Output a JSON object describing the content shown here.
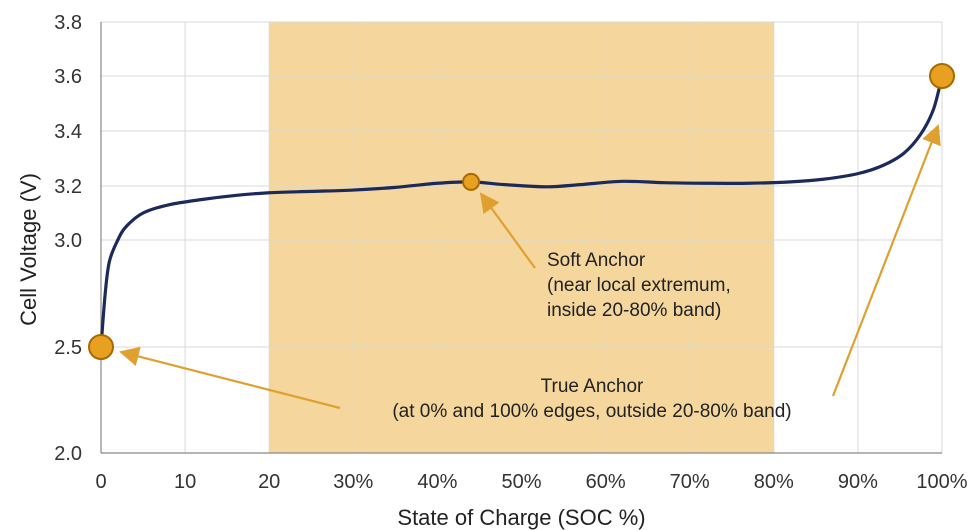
{
  "chart_data": {
    "type": "line",
    "xlabel": "State of Charge (SOC %)",
    "ylabel": "Cell Voltage (V)",
    "x_ticks": [
      {
        "value": 0,
        "label": "0"
      },
      {
        "value": 10,
        "label": "10"
      },
      {
        "value": 20,
        "label": "20"
      },
      {
        "value": 30,
        "label": "30%"
      },
      {
        "value": 40,
        "label": "40%"
      },
      {
        "value": 50,
        "label": "50%"
      },
      {
        "value": 60,
        "label": "60%"
      },
      {
        "value": 70,
        "label": "70%"
      },
      {
        "value": 80,
        "label": "80%"
      },
      {
        "value": 90,
        "label": "90%"
      },
      {
        "value": 100,
        "label": "100%"
      }
    ],
    "y_ticks": [
      {
        "value": 2.0,
        "label": "2.0"
      },
      {
        "value": 2.5,
        "label": "2.5"
      },
      {
        "value": 3.0,
        "label": "3.0"
      },
      {
        "value": 3.2,
        "label": "3.2"
      },
      {
        "value": 3.4,
        "label": "3.4"
      },
      {
        "value": 3.6,
        "label": "3.6"
      },
      {
        "value": 3.8,
        "label": "3.8"
      }
    ],
    "xlim": [
      0,
      100
    ],
    "y_axis_note": "non-uniform scale: 2.0-3.0 compressed, 3.0-3.8 linear",
    "grid": true,
    "highlight_band": {
      "x_from": 20,
      "x_to": 80,
      "color": "#f5d79e"
    },
    "series": [
      {
        "color": "#1b2a5a",
        "points": [
          [
            0,
            2.5
          ],
          [
            0.5,
            2.75
          ],
          [
            1,
            2.9
          ],
          [
            2,
            3.0
          ],
          [
            3,
            3.05
          ],
          [
            5,
            3.1
          ],
          [
            8,
            3.13
          ],
          [
            12,
            3.15
          ],
          [
            16,
            3.165
          ],
          [
            20,
            3.175
          ],
          [
            25,
            3.18
          ],
          [
            30,
            3.185
          ],
          [
            35,
            3.195
          ],
          [
            40,
            3.21
          ],
          [
            44,
            3.215
          ],
          [
            48,
            3.205
          ],
          [
            53,
            3.197
          ],
          [
            57,
            3.205
          ],
          [
            62,
            3.217
          ],
          [
            67,
            3.212
          ],
          [
            72,
            3.21
          ],
          [
            77,
            3.21
          ],
          [
            82,
            3.215
          ],
          [
            86,
            3.225
          ],
          [
            90,
            3.245
          ],
          [
            93,
            3.275
          ],
          [
            95.5,
            3.32
          ],
          [
            97.5,
            3.39
          ],
          [
            99,
            3.48
          ],
          [
            100,
            3.6
          ]
        ]
      }
    ],
    "markers": [
      {
        "x": 0,
        "y": 2.5,
        "size": "large",
        "color": "#e8a020"
      },
      {
        "x": 44,
        "y": 3.215,
        "size": "small",
        "color": "#e8a020"
      },
      {
        "x": 100,
        "y": 3.6,
        "size": "large",
        "color": "#e8a020"
      }
    ],
    "annotations": [
      {
        "name": "soft-anchor",
        "lines": [
          "Soft Anchor",
          "(near local extremum,",
          "inside 20-80% band)"
        ],
        "points_to": {
          "x": 44,
          "y": 3.215
        }
      },
      {
        "name": "true-anchor",
        "lines": [
          "True Anchor",
          "(at 0% and 100% edges, outside 20-80% band)"
        ],
        "points_to": [
          {
            "x": 0,
            "y": 2.5
          },
          {
            "x": 100,
            "y": 3.6
          }
        ]
      }
    ],
    "arrow_color": "#e0a030"
  }
}
